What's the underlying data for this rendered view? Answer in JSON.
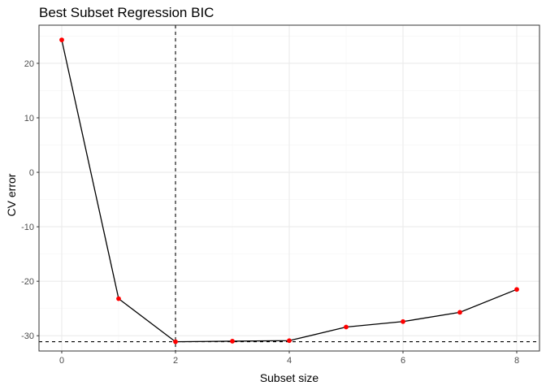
{
  "chart_data": {
    "type": "line",
    "title": "Best Subset Regression BIC",
    "xlabel": "Subset size",
    "ylabel": "CV error",
    "x": [
      0,
      1,
      2,
      3,
      4,
      5,
      6,
      7,
      8
    ],
    "series": [
      {
        "values": [
          24.3,
          -23.2,
          -31.1,
          -31.0,
          -30.9,
          -28.4,
          -27.4,
          -25.7,
          -21.5
        ]
      }
    ],
    "xlim": [
      -0.4,
      8.4
    ],
    "ylim": [
      -32.8,
      27.0
    ],
    "x_ticks": [
      0,
      2,
      4,
      6,
      8
    ],
    "x_tick_labels": [
      "0",
      "2",
      "4",
      "6",
      "8"
    ],
    "y_ticks": [
      -30,
      -20,
      -10,
      0,
      10,
      20
    ],
    "y_tick_labels": [
      "-30",
      "-20",
      "-10",
      "0",
      "10",
      "20"
    ],
    "reference_lines": {
      "vertical_x": 2,
      "horizontal_y": -31.1
    },
    "grid": true,
    "colors": {
      "line": "#000000",
      "points": "#ff0000",
      "reference": "#000000",
      "grid_major": "#ebebeb",
      "grid_minor": "#f5f5f5",
      "border": "#333333"
    }
  }
}
